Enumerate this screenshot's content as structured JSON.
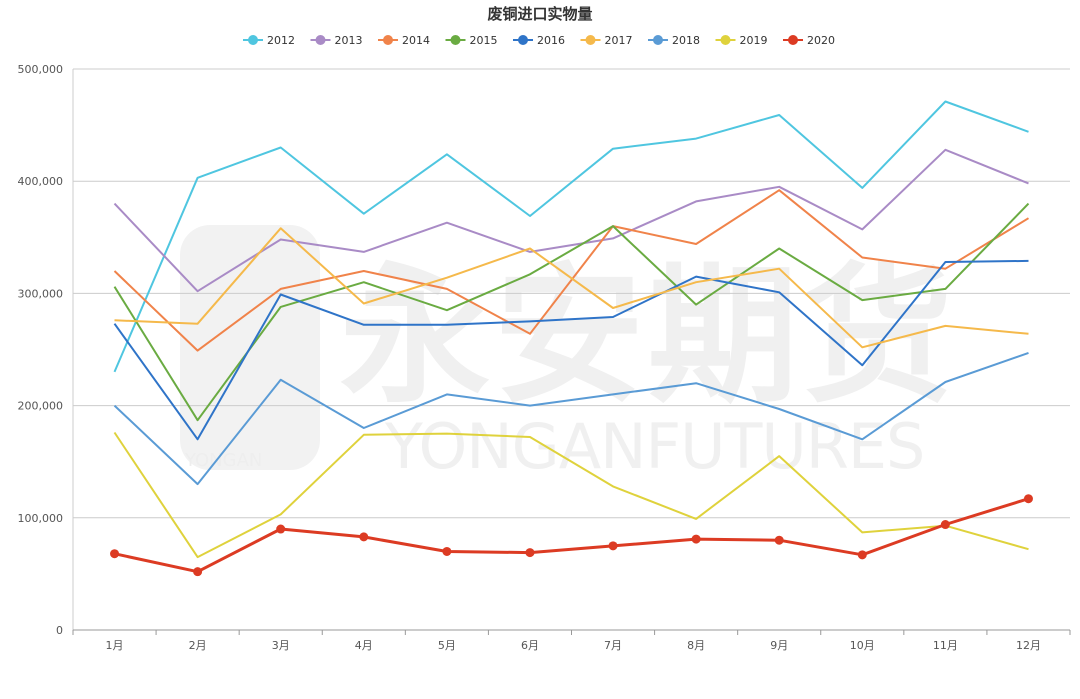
{
  "chart_data": {
    "type": "line",
    "title": "废铜进口实物量",
    "categories": [
      "1月",
      "2月",
      "3月",
      "4月",
      "5月",
      "6月",
      "7月",
      "8月",
      "9月",
      "10月",
      "11月",
      "12月"
    ],
    "ylim": [
      0,
      500000
    ],
    "yticks": [
      "0",
      "100,000",
      "200,000",
      "300,000",
      "400,000",
      "500,000"
    ],
    "ytick_values": [
      0,
      100000,
      200000,
      300000,
      400000,
      500000
    ],
    "grid": "horizontal",
    "legend_position": "top-center",
    "series": [
      {
        "name": "2012",
        "color": "#4fc6e0",
        "values": [
          230000,
          403000,
          430000,
          371000,
          424000,
          369000,
          429000,
          438000,
          459000,
          394000,
          471000,
          444000
        ]
      },
      {
        "name": "2013",
        "color": "#a98bc6",
        "values": [
          380000,
          302000,
          348000,
          337000,
          363000,
          337000,
          349000,
          382000,
          395000,
          357000,
          428000,
          398000
        ]
      },
      {
        "name": "2014",
        "color": "#f0834a",
        "values": [
          320000,
          249000,
          304000,
          320000,
          304000,
          264000,
          360000,
          344000,
          392000,
          332000,
          322000,
          367000
        ]
      },
      {
        "name": "2015",
        "color": "#6aab42",
        "values": [
          306000,
          187000,
          288000,
          310000,
          285000,
          317000,
          360000,
          290000,
          340000,
          294000,
          304000,
          380000
        ]
      },
      {
        "name": "2016",
        "color": "#2f74c8",
        "values": [
          273000,
          170000,
          299000,
          272000,
          272000,
          275000,
          279000,
          315000,
          301000,
          236000,
          328000,
          329000
        ]
      },
      {
        "name": "2017",
        "color": "#f5b94b",
        "values": [
          276000,
          273000,
          358000,
          291000,
          314000,
          340000,
          287000,
          310000,
          322000,
          252000,
          271000,
          264000
        ]
      },
      {
        "name": "2018",
        "color": "#5a9bd5",
        "values": [
          200000,
          130000,
          223000,
          180000,
          210000,
          200000,
          210000,
          220000,
          197000,
          170000,
          221000,
          247000
        ]
      },
      {
        "name": "2019",
        "color": "#dfd23c",
        "values": [
          176000,
          65000,
          103000,
          174000,
          175000,
          172000,
          128000,
          99000,
          155000,
          87000,
          93000,
          72000
        ]
      },
      {
        "name": "2020",
        "color": "#dc3b23",
        "values": [
          68000,
          52000,
          90000,
          83000,
          70000,
          69000,
          75000,
          81000,
          80000,
          67000,
          94000,
          117000
        ],
        "markers": true
      }
    ]
  },
  "watermark": {
    "cn": "永安期货",
    "en": "YONGANFUTURES",
    "logo_sub": "YONGAN"
  }
}
